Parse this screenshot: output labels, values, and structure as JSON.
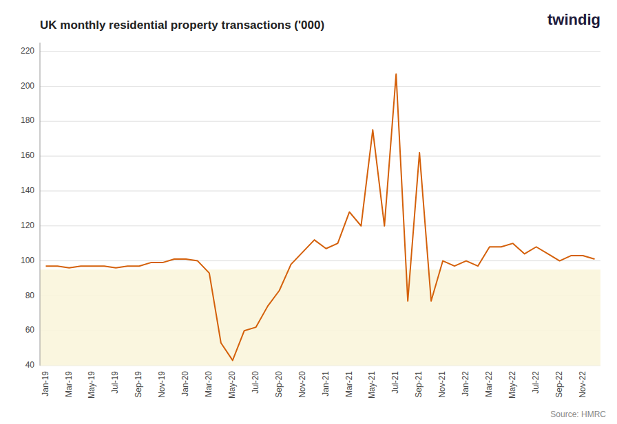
{
  "chart_data": {
    "type": "line",
    "title": "UK monthly residential property transactions ('000)",
    "categories": [
      "Jan-19",
      null,
      "Mar-19",
      null,
      "May-19",
      null,
      "Jul-19",
      null,
      "Sep-19",
      null,
      "Nov-19",
      null,
      "Jan-20",
      null,
      "Mar-20",
      null,
      "May-20",
      null,
      "Jul-20",
      null,
      "Sep-20",
      null,
      "Nov-20",
      null,
      "Jan-21",
      null,
      "Mar-21",
      null,
      "May-21",
      null,
      "Jul-21",
      null,
      "Sep-21",
      null,
      "Nov-21",
      null,
      "Jan-22",
      null,
      "Mar-22",
      null,
      "May-22",
      null,
      "Jul-22",
      null,
      "Sep-22",
      null,
      "Nov-22",
      null
    ],
    "values": [
      97,
      97,
      96,
      97,
      97,
      97,
      96,
      97,
      97,
      99,
      99,
      101,
      101,
      100,
      93,
      53,
      43,
      60,
      62,
      74,
      83,
      98,
      105,
      112,
      107,
      110,
      128,
      120,
      175,
      120,
      207,
      77,
      162,
      77,
      100,
      97,
      100,
      97,
      108,
      108,
      110,
      104,
      108,
      104,
      100,
      103,
      103,
      101
    ],
    "color": "#D4600A",
    "ylim": [
      40,
      225
    ],
    "yticks": [
      40,
      60,
      80,
      100,
      120,
      140,
      160,
      180,
      200,
      220
    ],
    "grid": true,
    "shading": {
      "y": 95,
      "color": "#FAF5DC"
    },
    "annotations": [
      {
        "text": "Source: HMRC"
      },
      {
        "text": "twindig",
        "color": "#1E1B3A"
      }
    ]
  }
}
